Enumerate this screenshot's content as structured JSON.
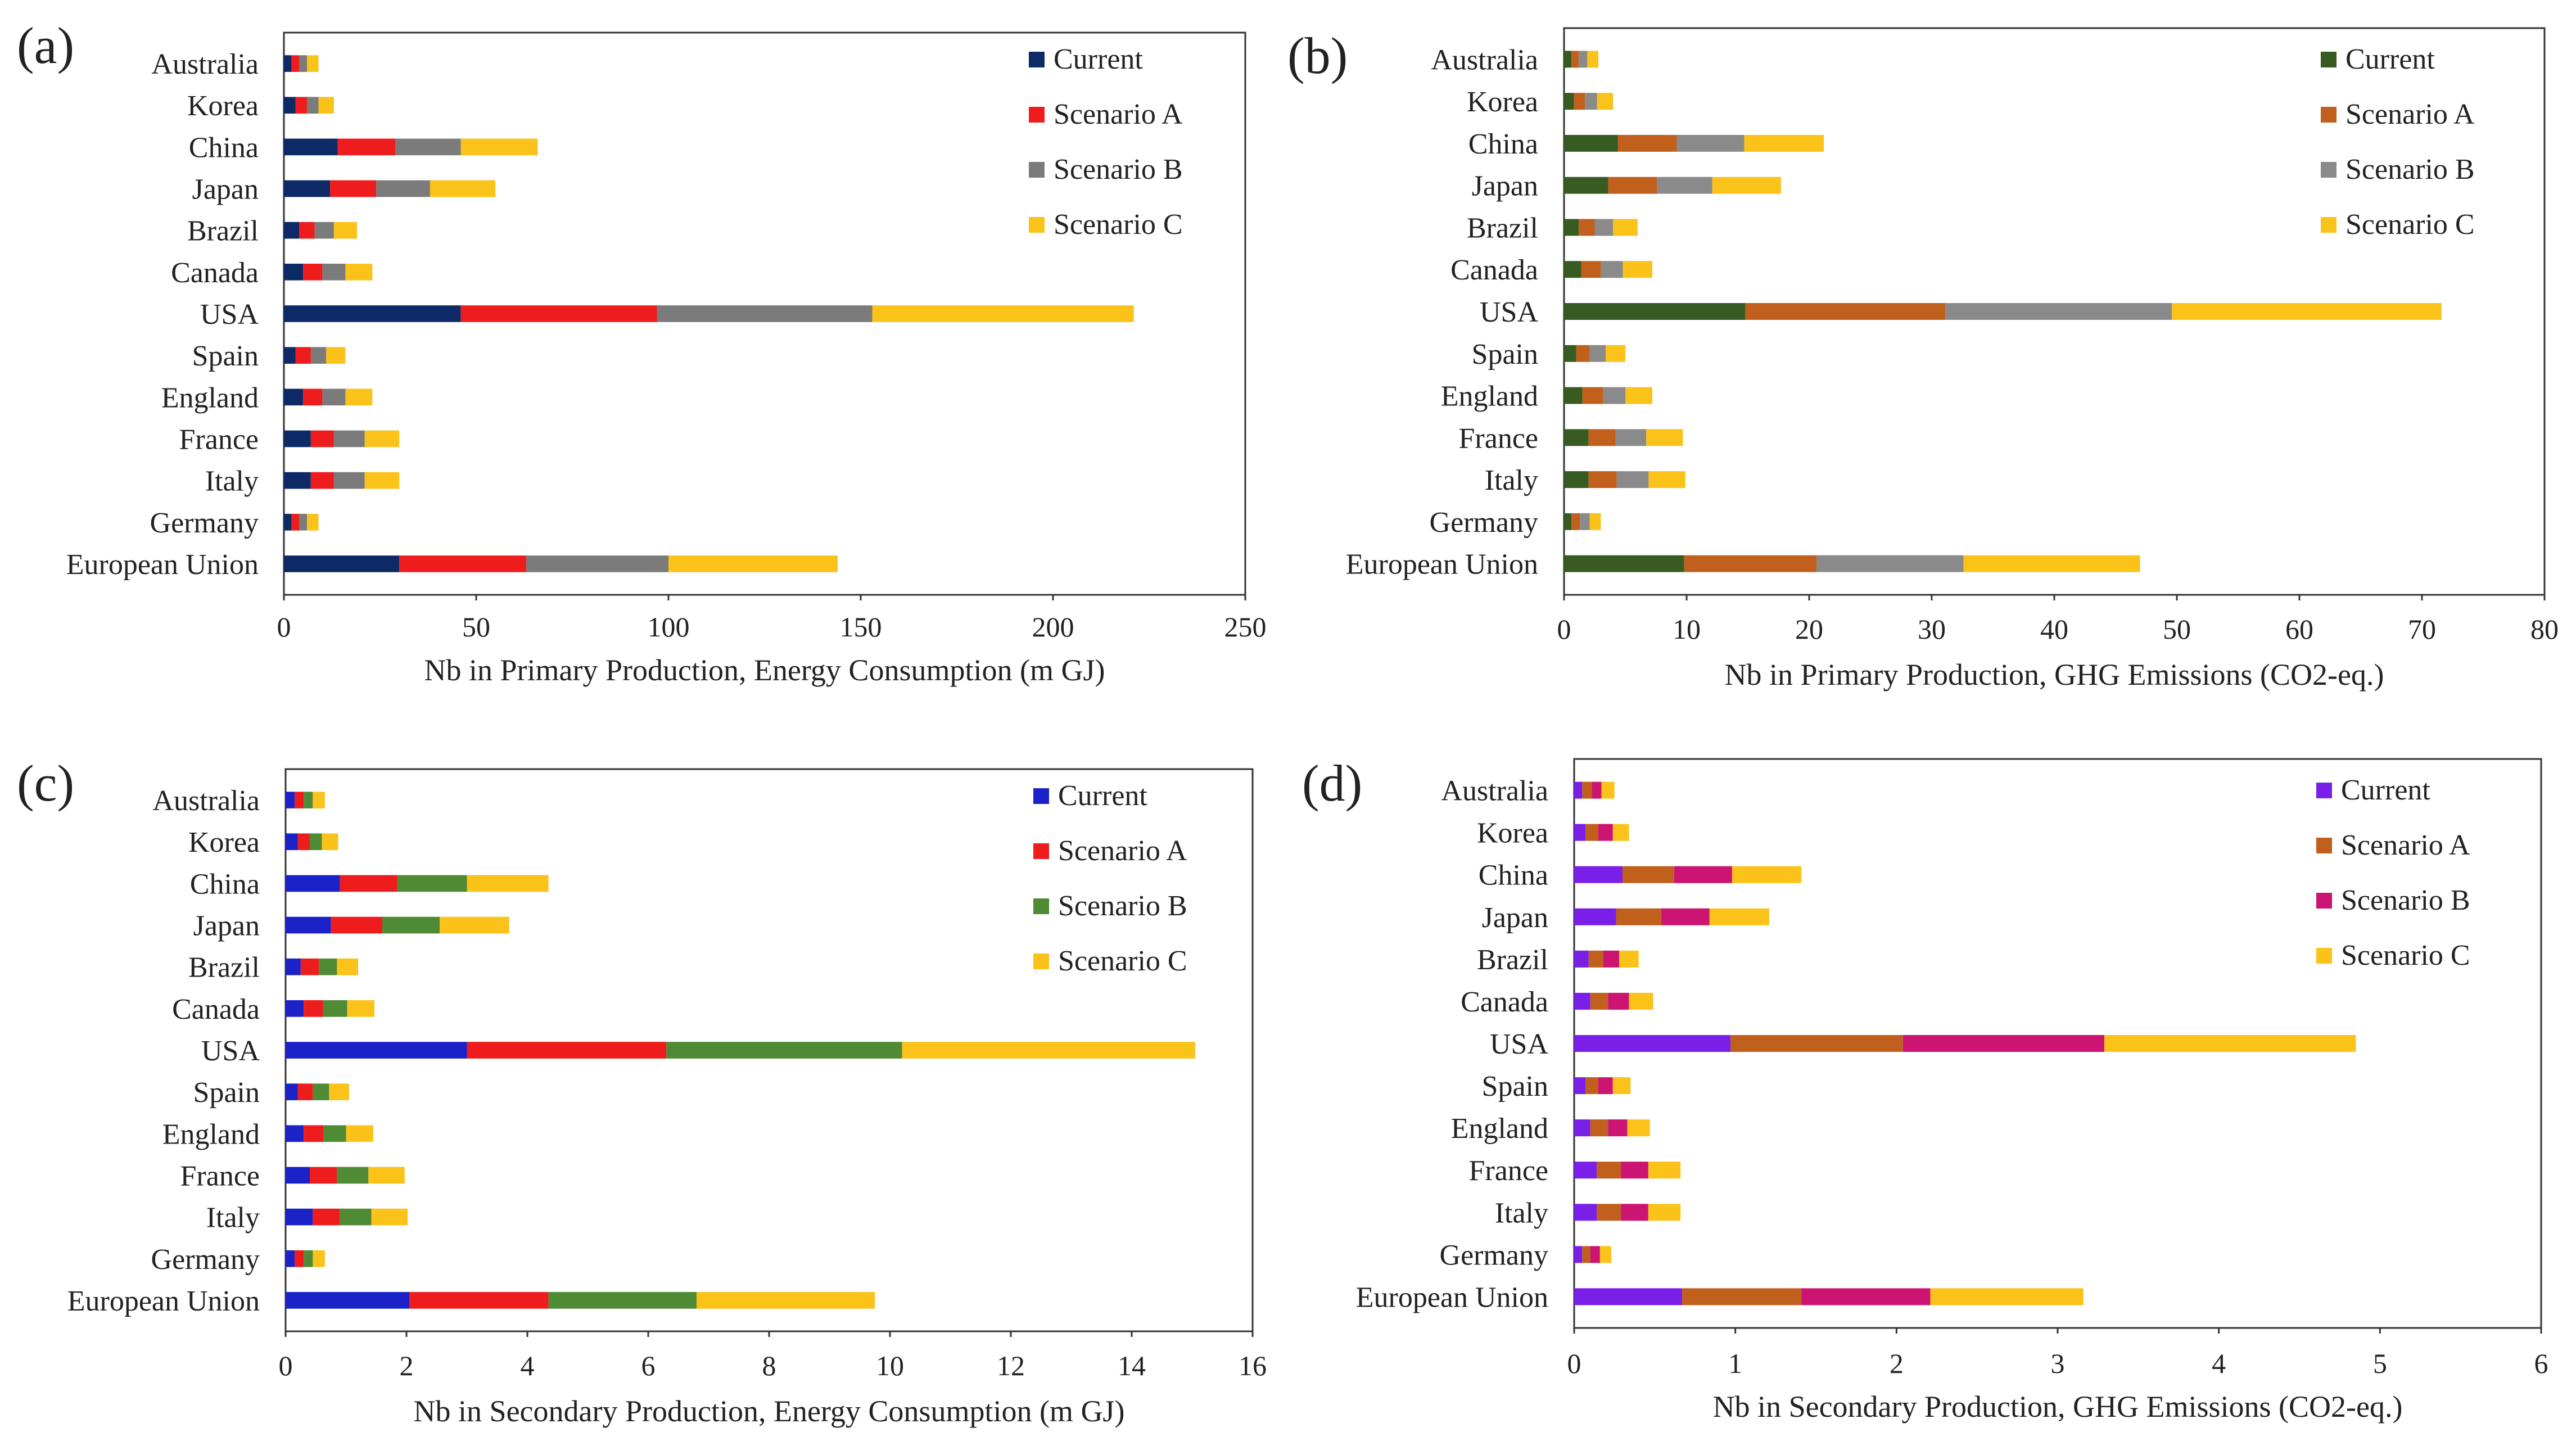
{
  "figure": {
    "panels": [
      "(a)",
      "(b)",
      "(c)",
      "(d)"
    ]
  },
  "colors": {
    "a": [
      "#0d2a66",
      "#ee1c1c",
      "#7b7b7b",
      "#fbc21a"
    ],
    "b": [
      "#375b20",
      "#c0601c",
      "#8a8a8a",
      "#fbc21a"
    ],
    "c": [
      "#1a22c8",
      "#ee1c1c",
      "#4f8a35",
      "#fbc21a"
    ],
    "d": [
      "#7a1fe8",
      "#c0601c",
      "#cc1472",
      "#fbc21a"
    ]
  },
  "chart_data": [
    {
      "id": "a",
      "panel_label": "(a)",
      "type": "bar",
      "orientation": "horizontal",
      "stacked": true,
      "xlabel": "Nb in Primary Production, Energy Consumption (m GJ)",
      "xlim": [
        0,
        250
      ],
      "xticks": [
        0,
        50,
        100,
        150,
        200,
        250
      ],
      "categories": [
        "Australia",
        "Korea",
        "China",
        "Japan",
        "Brazil",
        "Canada",
        "USA",
        "Spain",
        "England",
        "France",
        "Italy",
        "Germany",
        "European Union"
      ],
      "series": [
        {
          "name": "Current",
          "values": [
            2,
            3,
            14,
            12,
            4,
            5,
            46,
            3,
            5,
            7,
            7,
            2,
            30
          ]
        },
        {
          "name": "Scenario A",
          "values": [
            2,
            3,
            15,
            12,
            4,
            5,
            51,
            4,
            5,
            6,
            6,
            2,
            33
          ]
        },
        {
          "name": "Scenario B",
          "values": [
            2,
            3,
            17,
            14,
            5,
            6,
            56,
            4,
            6,
            8,
            8,
            2,
            37
          ]
        },
        {
          "name": "Scenario C",
          "values": [
            3,
            4,
            20,
            17,
            6,
            7,
            68,
            5,
            7,
            9,
            9,
            3,
            44
          ]
        }
      ],
      "legend": "top-right"
    },
    {
      "id": "b",
      "panel_label": "(b)",
      "type": "bar",
      "orientation": "horizontal",
      "stacked": true,
      "xlabel": "Nb in Primary Production, GHG Emissions (CO2-eq.)",
      "xlim": [
        0,
        80
      ],
      "xticks": [
        0,
        10,
        20,
        30,
        40,
        50,
        60,
        70,
        80
      ],
      "categories": [
        "Australia",
        "Korea",
        "China",
        "Japan",
        "Brazil",
        "Canada",
        "USA",
        "Spain",
        "England",
        "France",
        "Italy",
        "Germany",
        "European Union"
      ],
      "series": [
        {
          "name": "Current",
          "values": [
            0.6,
            0.8,
            4.4,
            3.6,
            1.2,
            1.4,
            14.8,
            1.0,
            1.5,
            2.0,
            2.0,
            0.6,
            9.8
          ]
        },
        {
          "name": "Scenario A",
          "values": [
            0.6,
            0.9,
            4.8,
            4.0,
            1.3,
            1.6,
            16.3,
            1.1,
            1.7,
            2.2,
            2.3,
            0.7,
            10.8
          ]
        },
        {
          "name": "Scenario B",
          "values": [
            0.7,
            1.0,
            5.5,
            4.5,
            1.5,
            1.8,
            18.5,
            1.3,
            1.8,
            2.5,
            2.6,
            0.8,
            12.0
          ]
        },
        {
          "name": "Scenario C",
          "values": [
            0.9,
            1.3,
            6.5,
            5.6,
            2.0,
            2.4,
            22.0,
            1.6,
            2.2,
            3.0,
            3.0,
            0.9,
            14.4
          ]
        }
      ],
      "legend": "top-right"
    },
    {
      "id": "c",
      "panel_label": "(c)",
      "type": "bar",
      "orientation": "horizontal",
      "stacked": true,
      "xlabel": "Nb in Secondary Production, Energy Consumption (m GJ)",
      "xlim": [
        0,
        16
      ],
      "xticks": [
        0,
        2,
        4,
        6,
        8,
        10,
        12,
        14,
        16
      ],
      "categories": [
        "Australia",
        "Korea",
        "China",
        "Japan",
        "Brazil",
        "Canada",
        "USA",
        "Spain",
        "England",
        "France",
        "Italy",
        "Germany",
        "European Union"
      ],
      "series": [
        {
          "name": "Current",
          "values": [
            0.15,
            0.2,
            0.9,
            0.75,
            0.25,
            0.3,
            3.0,
            0.2,
            0.3,
            0.4,
            0.45,
            0.15,
            2.05
          ]
        },
        {
          "name": "Scenario A",
          "values": [
            0.15,
            0.2,
            0.95,
            0.85,
            0.3,
            0.32,
            3.3,
            0.25,
            0.33,
            0.45,
            0.45,
            0.15,
            2.3
          ]
        },
        {
          "name": "Scenario B",
          "values": [
            0.15,
            0.2,
            1.15,
            0.95,
            0.3,
            0.4,
            3.9,
            0.27,
            0.37,
            0.52,
            0.52,
            0.15,
            2.45
          ]
        },
        {
          "name": "Scenario C",
          "values": [
            0.2,
            0.27,
            1.35,
            1.15,
            0.35,
            0.45,
            4.85,
            0.33,
            0.45,
            0.6,
            0.6,
            0.2,
            2.95
          ]
        }
      ],
      "legend": "top-right"
    },
    {
      "id": "d",
      "panel_label": "(d)",
      "type": "bar",
      "orientation": "horizontal",
      "stacked": true,
      "xlabel": "Nb in Secondary Production, GHG Emissions (CO2-eq.)",
      "xlim": [
        0,
        6
      ],
      "xticks": [
        0,
        1,
        2,
        3,
        4,
        5,
        6
      ],
      "categories": [
        "Australia",
        "Korea",
        "China",
        "Japan",
        "Brazil",
        "Canada",
        "USA",
        "Spain",
        "England",
        "France",
        "Italy",
        "Germany",
        "European Union"
      ],
      "series": [
        {
          "name": "Current",
          "values": [
            0.05,
            0.07,
            0.3,
            0.26,
            0.09,
            0.1,
            0.97,
            0.07,
            0.1,
            0.14,
            0.14,
            0.05,
            0.67
          ]
        },
        {
          "name": "Scenario A",
          "values": [
            0.06,
            0.08,
            0.32,
            0.28,
            0.09,
            0.11,
            1.07,
            0.08,
            0.11,
            0.15,
            0.15,
            0.05,
            0.74
          ]
        },
        {
          "name": "Scenario B",
          "values": [
            0.06,
            0.09,
            0.36,
            0.3,
            0.1,
            0.13,
            1.25,
            0.09,
            0.12,
            0.17,
            0.17,
            0.06,
            0.8
          ]
        },
        {
          "name": "Scenario C",
          "values": [
            0.08,
            0.1,
            0.43,
            0.37,
            0.12,
            0.15,
            1.56,
            0.11,
            0.14,
            0.2,
            0.2,
            0.07,
            0.95
          ]
        }
      ],
      "legend": "top-right"
    }
  ]
}
